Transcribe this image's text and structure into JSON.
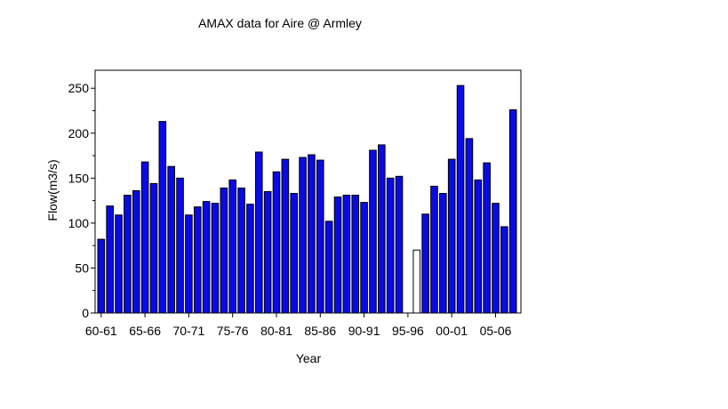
{
  "chart_data": {
    "type": "bar",
    "title": "AMAX data for Aire @ Armley",
    "xlabel": "Year",
    "ylabel": "Flow(m3/s)",
    "ylim": [
      0,
      270
    ],
    "yticks": [
      0,
      50,
      100,
      150,
      200,
      250
    ],
    "tick_labels": [
      "60-61",
      "65-66",
      "70-71",
      "75-76",
      "80-81",
      "85-86",
      "90-91",
      "95-96",
      "00-01",
      "05-06"
    ],
    "grid": false,
    "colors": {
      "bar": "#0a0ae6",
      "highlight": "#ffffff",
      "outline": "#000000"
    },
    "highlight_category": "96-97",
    "categories": [
      "60-61",
      "61-62",
      "62-63",
      "63-64",
      "64-65",
      "65-66",
      "66-67",
      "67-68",
      "68-69",
      "69-70",
      "70-71",
      "71-72",
      "72-73",
      "73-74",
      "74-75",
      "75-76",
      "76-77",
      "77-78",
      "78-79",
      "79-80",
      "80-81",
      "81-82",
      "82-83",
      "83-84",
      "84-85",
      "85-86",
      "86-87",
      "87-88",
      "88-89",
      "89-90",
      "90-91",
      "91-92",
      "92-93",
      "93-94",
      "94-95",
      "95-96",
      "96-97",
      "97-98",
      "98-99",
      "99-00",
      "00-01",
      "01-02",
      "02-03",
      "03-04",
      "04-05",
      "05-06",
      "06-07",
      "07-08"
    ],
    "values": [
      82,
      119,
      109,
      131,
      136,
      168,
      144,
      213,
      163,
      150,
      109,
      118,
      124,
      122,
      139,
      148,
      139,
      121,
      179,
      135,
      157,
      171,
      133,
      173,
      176,
      170,
      102,
      129,
      131,
      131,
      123,
      181,
      187,
      150,
      152,
      null,
      70,
      110,
      141,
      133,
      171,
      253,
      194,
      148,
      167,
      122,
      96,
      226
    ]
  }
}
